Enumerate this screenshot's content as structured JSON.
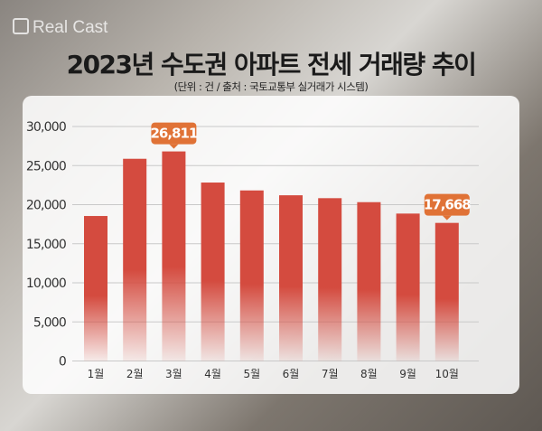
{
  "logo": "Real Cast",
  "title": "2023년 수도권 아파트 전세 거래량 추이",
  "subtitle": "(단위 : 건 / 출처 : 국토교통부 실거래가 시스템)",
  "colors": {
    "bar": "#d44b3f",
    "callout": "#e07236"
  },
  "chart_data": {
    "type": "bar",
    "title": "2023년 수도권 아파트 전세 거래량 추이",
    "categories": [
      "1월",
      "2월",
      "3월",
      "4월",
      "5월",
      "6월",
      "7월",
      "8월",
      "9월",
      "10월"
    ],
    "values": [
      18550,
      25870,
      26811,
      22830,
      21820,
      21200,
      20830,
      20320,
      18860,
      17668
    ],
    "ylim": [
      0,
      30000
    ],
    "yticks": [
      0,
      5000,
      10000,
      15000,
      20000,
      25000,
      30000
    ],
    "ytick_labels": [
      "0",
      "5,000",
      "10,000",
      "15,000",
      "20,000",
      "25,000",
      "30,000"
    ],
    "annotations": [
      {
        "category": "3월",
        "label": "26,811"
      },
      {
        "category": "10월",
        "label": "17,668"
      }
    ],
    "grid": true,
    "xlabel": "",
    "ylabel": ""
  }
}
